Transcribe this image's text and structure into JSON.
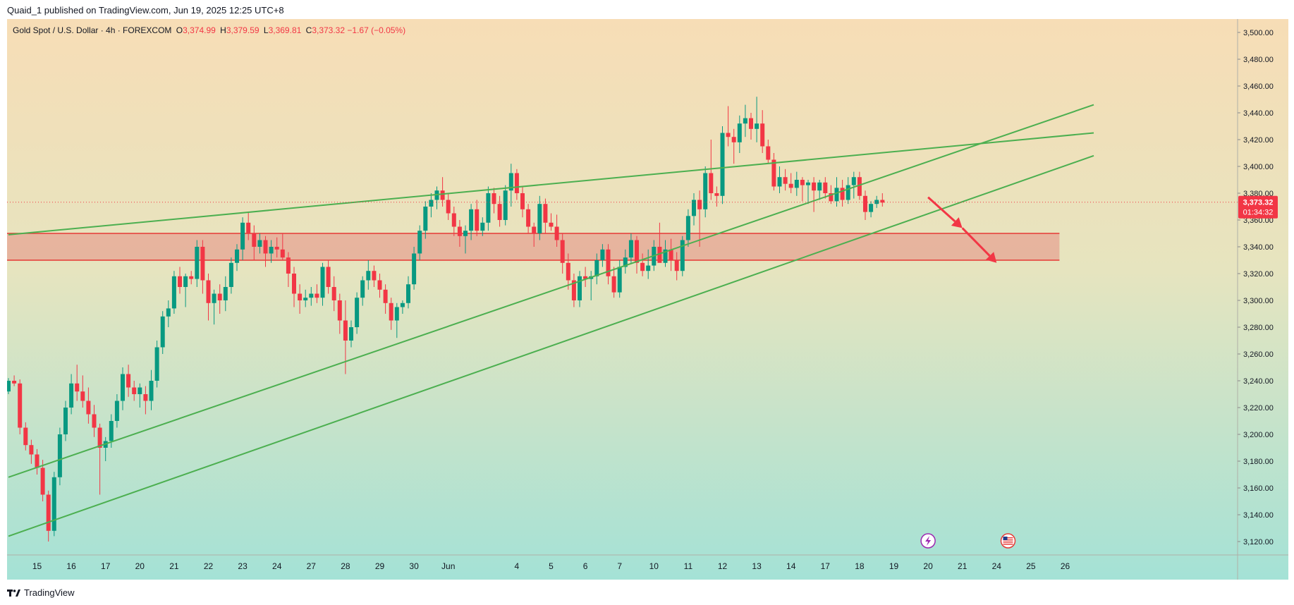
{
  "header": {
    "published_line": "Quaid_1 published on TradingView.com, Jun 19, 2025 12:25 UTC+8"
  },
  "symbol": {
    "name": "Gold Spot / U.S. Dollar · 4h · FOREXCOM",
    "open_label": "O",
    "open": "3,374.99",
    "high_label": "H",
    "high": "3,379.59",
    "low_label": "L",
    "low": "3,369.81",
    "close_label": "C",
    "close": "3,373.32",
    "change": "−1.67 (−0.05%)"
  },
  "price_badge": {
    "price": "3,373.32",
    "countdown": "01:34:32"
  },
  "footer": {
    "brand": "TradingView"
  },
  "colors": {
    "up": "#089981",
    "down": "#f23645",
    "trendline": "#4caf50",
    "zone_fill": "#e57373",
    "zone_border": "#e53935",
    "arrow": "#f23645",
    "bg_top": "#f7ddb6",
    "bg_bottom": "#a4e2d6"
  },
  "icons": [
    "tradingview-logo-icon",
    "flash-event-icon",
    "us-flag-event-icon"
  ],
  "chart_data": {
    "type": "candlestick",
    "timeframe": "4h",
    "ylim": [
      3110,
      3510
    ],
    "y_ticks": [
      3120,
      3140,
      3160,
      3180,
      3200,
      3220,
      3240,
      3260,
      3280,
      3300,
      3320,
      3340,
      3360,
      3380,
      3400,
      3420,
      3440,
      3460,
      3480,
      3500
    ],
    "y_tick_labels": [
      "3,120.00",
      "3,140.00",
      "3,160.00",
      "3,180.00",
      "3,200.00",
      "3,220.00",
      "3,240.00",
      "3,260.00",
      "3,280.00",
      "3,300.00",
      "3,320.00",
      "3,340.00",
      "3,360.00",
      "3,380.00",
      "3,400.00",
      "3,420.00",
      "3,440.00",
      "3,460.00",
      "3,480.00",
      "3,500.00"
    ],
    "x_ticks": [
      {
        "label": "15",
        "bar": 5
      },
      {
        "label": "16",
        "bar": 11
      },
      {
        "label": "17",
        "bar": 17
      },
      {
        "label": "20",
        "bar": 23
      },
      {
        "label": "21",
        "bar": 29
      },
      {
        "label": "22",
        "bar": 35
      },
      {
        "label": "23",
        "bar": 41
      },
      {
        "label": "24",
        "bar": 47
      },
      {
        "label": "27",
        "bar": 53
      },
      {
        "label": "28",
        "bar": 59
      },
      {
        "label": "29",
        "bar": 65
      },
      {
        "label": "30",
        "bar": 71
      },
      {
        "label": "Jun",
        "bar": 77
      },
      {
        "label": "4",
        "bar": 89
      },
      {
        "label": "5",
        "bar": 95
      },
      {
        "label": "6",
        "bar": 101
      },
      {
        "label": "7",
        "bar": 107
      },
      {
        "label": "10",
        "bar": 113
      },
      {
        "label": "11",
        "bar": 119
      },
      {
        "label": "12",
        "bar": 125
      },
      {
        "label": "13",
        "bar": 131
      },
      {
        "label": "14",
        "bar": 137
      },
      {
        "label": "17",
        "bar": 143
      },
      {
        "label": "18",
        "bar": 149
      },
      {
        "label": "19",
        "bar": 155
      },
      {
        "label": "20",
        "bar": 161
      },
      {
        "label": "21",
        "bar": 167
      },
      {
        "label": "24",
        "bar": 173
      },
      {
        "label": "25",
        "bar": 179
      },
      {
        "label": "26",
        "bar": 185
      }
    ],
    "candles_ohlc": [
      [
        3232,
        3242,
        3230,
        3240
      ],
      [
        3240,
        3244,
        3236,
        3238
      ],
      [
        3238,
        3241,
        3200,
        3205
      ],
      [
        3205,
        3209,
        3188,
        3192
      ],
      [
        3192,
        3196,
        3178,
        3185
      ],
      [
        3185,
        3189,
        3170,
        3175
      ],
      [
        3175,
        3181,
        3150,
        3155
      ],
      [
        3155,
        3158,
        3120,
        3128
      ],
      [
        3128,
        3172,
        3124,
        3168
      ],
      [
        3168,
        3205,
        3162,
        3200
      ],
      [
        3200,
        3225,
        3195,
        3220
      ],
      [
        3220,
        3245,
        3215,
        3238
      ],
      [
        3238,
        3252,
        3225,
        3232
      ],
      [
        3232,
        3244,
        3220,
        3225
      ],
      [
        3225,
        3235,
        3208,
        3215
      ],
      [
        3215,
        3222,
        3198,
        3205
      ],
      [
        3205,
        3208,
        3155,
        3190
      ],
      [
        3190,
        3198,
        3180,
        3195
      ],
      [
        3195,
        3215,
        3190,
        3210
      ],
      [
        3210,
        3230,
        3205,
        3225
      ],
      [
        3225,
        3250,
        3218,
        3245
      ],
      [
        3245,
        3252,
        3228,
        3235
      ],
      [
        3235,
        3240,
        3225,
        3230
      ],
      [
        3230,
        3238,
        3220,
        3235
      ],
      [
        3230,
        3236,
        3215,
        3225
      ],
      [
        3225,
        3248,
        3218,
        3240
      ],
      [
        3240,
        3270,
        3235,
        3265
      ],
      [
        3265,
        3292,
        3260,
        3288
      ],
      [
        3288,
        3300,
        3280,
        3294
      ],
      [
        3294,
        3322,
        3290,
        3318
      ],
      [
        3318,
        3325,
        3305,
        3310
      ],
      [
        3310,
        3320,
        3295,
        3318
      ],
      [
        3318,
        3322,
        3312,
        3316
      ],
      [
        3316,
        3345,
        3310,
        3340
      ],
      [
        3340,
        3345,
        3305,
        3315
      ],
      [
        3315,
        3320,
        3285,
        3298
      ],
      [
        3298,
        3308,
        3282,
        3305
      ],
      [
        3305,
        3312,
        3290,
        3300
      ],
      [
        3300,
        3318,
        3292,
        3310
      ],
      [
        3310,
        3332,
        3305,
        3328
      ],
      [
        3328,
        3342,
        3322,
        3338
      ],
      [
        3338,
        3362,
        3330,
        3358
      ],
      [
        3358,
        3366,
        3345,
        3350
      ],
      [
        3350,
        3356,
        3330,
        3340
      ],
      [
        3340,
        3350,
        3335,
        3345
      ],
      [
        3345,
        3348,
        3325,
        3335
      ],
      [
        3335,
        3345,
        3328,
        3340
      ],
      [
        3340,
        3347,
        3332,
        3338
      ],
      [
        3338,
        3350,
        3330,
        3332
      ],
      [
        3332,
        3336,
        3310,
        3320
      ],
      [
        3320,
        3325,
        3295,
        3305
      ],
      [
        3305,
        3312,
        3290,
        3300
      ],
      [
        3300,
        3308,
        3295,
        3302
      ],
      [
        3302,
        3310,
        3296,
        3305
      ],
      [
        3305,
        3312,
        3298,
        3302
      ],
      [
        3302,
        3328,
        3296,
        3325
      ],
      [
        3325,
        3330,
        3305,
        3310
      ],
      [
        3310,
        3318,
        3292,
        3300
      ],
      [
        3300,
        3305,
        3275,
        3285
      ],
      [
        3285,
        3300,
        3245,
        3270
      ],
      [
        3270,
        3285,
        3265,
        3280
      ],
      [
        3280,
        3306,
        3275,
        3302
      ],
      [
        3302,
        3318,
        3296,
        3315
      ],
      [
        3315,
        3330,
        3308,
        3322
      ],
      [
        3322,
        3326,
        3310,
        3315
      ],
      [
        3315,
        3320,
        3302,
        3308
      ],
      [
        3308,
        3312,
        3290,
        3298
      ],
      [
        3298,
        3302,
        3278,
        3285
      ],
      [
        3285,
        3298,
        3272,
        3295
      ],
      [
        3295,
        3300,
        3290,
        3298
      ],
      [
        3298,
        3318,
        3294,
        3312
      ],
      [
        3312,
        3340,
        3308,
        3335
      ],
      [
        3335,
        3356,
        3330,
        3352
      ],
      [
        3352,
        3374,
        3346,
        3370
      ],
      [
        3370,
        3380,
        3362,
        3375
      ],
      [
        3375,
        3385,
        3368,
        3382
      ],
      [
        3382,
        3392,
        3370,
        3375
      ],
      [
        3375,
        3380,
        3360,
        3365
      ],
      [
        3365,
        3370,
        3348,
        3355
      ],
      [
        3355,
        3360,
        3340,
        3348
      ],
      [
        3348,
        3356,
        3335,
        3352
      ],
      [
        3352,
        3372,
        3345,
        3368
      ],
      [
        3368,
        3375,
        3348,
        3352
      ],
      [
        3352,
        3362,
        3348,
        3358
      ],
      [
        3358,
        3385,
        3352,
        3380
      ],
      [
        3380,
        3384,
        3365,
        3372
      ],
      [
        3372,
        3378,
        3355,
        3360
      ],
      [
        3360,
        3386,
        3356,
        3382
      ],
      [
        3382,
        3402,
        3370,
        3395
      ],
      [
        3395,
        3398,
        3375,
        3380
      ],
      [
        3380,
        3385,
        3362,
        3368
      ],
      [
        3368,
        3372,
        3350,
        3355
      ],
      [
        3355,
        3358,
        3340,
        3350
      ],
      [
        3350,
        3378,
        3345,
        3372
      ],
      [
        3372,
        3376,
        3350,
        3358
      ],
      [
        3358,
        3365,
        3352,
        3355
      ],
      [
        3355,
        3364,
        3340,
        3345
      ],
      [
        3345,
        3350,
        3320,
        3328
      ],
      [
        3328,
        3335,
        3308,
        3315
      ],
      [
        3315,
        3320,
        3295,
        3300
      ],
      [
        3300,
        3322,
        3295,
        3318
      ],
      [
        3318,
        3325,
        3310,
        3316
      ],
      [
        3316,
        3322,
        3300,
        3318
      ],
      [
        3318,
        3335,
        3312,
        3330
      ],
      [
        3330,
        3342,
        3325,
        3338
      ],
      [
        3338,
        3342,
        3312,
        3318
      ],
      [
        3318,
        3325,
        3302,
        3306
      ],
      [
        3306,
        3330,
        3302,
        3325
      ],
      [
        3325,
        3338,
        3320,
        3332
      ],
      [
        3332,
        3350,
        3328,
        3345
      ],
      [
        3345,
        3348,
        3320,
        3328
      ],
      [
        3328,
        3335,
        3318,
        3322
      ],
      [
        3322,
        3338,
        3316,
        3326
      ],
      [
        3326,
        3345,
        3322,
        3340
      ],
      [
        3340,
        3358,
        3332,
        3328
      ],
      [
        3328,
        3345,
        3325,
        3338
      ],
      [
        3338,
        3346,
        3322,
        3330
      ],
      [
        3330,
        3336,
        3315,
        3322
      ],
      [
        3322,
        3348,
        3318,
        3345
      ],
      [
        3345,
        3368,
        3340,
        3363
      ],
      [
        3363,
        3380,
        3356,
        3375
      ],
      [
        3375,
        3382,
        3340,
        3368
      ],
      [
        3368,
        3400,
        3362,
        3395
      ],
      [
        3395,
        3420,
        3375,
        3380
      ],
      [
        3380,
        3385,
        3370,
        3378
      ],
      [
        3378,
        3430,
        3372,
        3425
      ],
      [
        3425,
        3445,
        3415,
        3422
      ],
      [
        3422,
        3428,
        3402,
        3418
      ],
      [
        3418,
        3438,
        3410,
        3432
      ],
      [
        3432,
        3446,
        3422,
        3436
      ],
      [
        3436,
        3440,
        3420,
        3428
      ],
      [
        3428,
        3452,
        3418,
        3432
      ],
      [
        3432,
        3442,
        3410,
        3415
      ],
      [
        3415,
        3420,
        3402,
        3405
      ],
      [
        3405,
        3410,
        3382,
        3385
      ],
      [
        3385,
        3400,
        3380,
        3392
      ],
      [
        3392,
        3398,
        3382,
        3387
      ],
      [
        3387,
        3395,
        3380,
        3384
      ],
      [
        3384,
        3396,
        3378,
        3390
      ],
      [
        3390,
        3392,
        3374,
        3386
      ],
      [
        3386,
        3390,
        3372,
        3388
      ],
      [
        3388,
        3392,
        3366,
        3382
      ],
      [
        3382,
        3390,
        3375,
        3388
      ],
      [
        3388,
        3392,
        3376,
        3380
      ],
      [
        3380,
        3386,
        3372,
        3374
      ],
      [
        3374,
        3392,
        3370,
        3384
      ],
      [
        3384,
        3390,
        3370,
        3375
      ],
      [
        3375,
        3392,
        3372,
        3386
      ],
      [
        3386,
        3396,
        3376,
        3392
      ],
      [
        3392,
        3396,
        3375,
        3378
      ],
      [
        3378,
        3382,
        3360,
        3366
      ],
      [
        3366,
        3374,
        3362,
        3372
      ],
      [
        3372,
        3378,
        3369,
        3375
      ],
      [
        3375,
        3380,
        3370,
        3373
      ]
    ],
    "support_zone": {
      "from": 3330,
      "to": 3350,
      "end_bar": 184
    },
    "trendlines": [
      {
        "name": "upper-resistance-line",
        "points": [
          [
            0,
            3349
          ],
          [
            190,
            3425
          ]
        ]
      },
      {
        "name": "middle-channel-line",
        "points": [
          [
            0,
            3168
          ],
          [
            190,
            3446
          ]
        ]
      },
      {
        "name": "lower-channel-line",
        "points": [
          [
            0,
            3124
          ],
          [
            190,
            3408
          ]
        ]
      }
    ],
    "projection_arrows": [
      {
        "from": [
          161,
          3377
        ],
        "to": [
          167,
          3354
        ]
      },
      {
        "from": [
          167,
          3354
        ],
        "to": [
          173,
          3328
        ]
      }
    ],
    "last_price": 3373.32,
    "events": [
      {
        "icon": "flash-event-icon",
        "bar": 161
      },
      {
        "icon": "us-flag-event-icon",
        "bar": 175
      }
    ]
  }
}
